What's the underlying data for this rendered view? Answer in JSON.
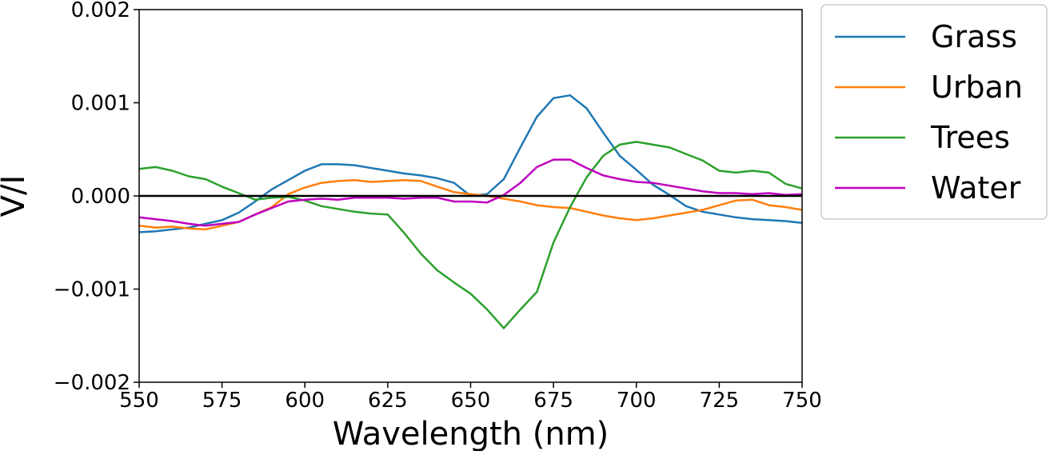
{
  "chart_data": {
    "type": "line",
    "title": "",
    "xlabel": "Wavelength (nm)",
    "ylabel": "V/I",
    "xlim": [
      550,
      750
    ],
    "ylim": [
      -0.002,
      0.002
    ],
    "xticks": [
      550,
      575,
      600,
      625,
      650,
      675,
      700,
      725,
      750
    ],
    "xtick_labels": [
      "550",
      "575",
      "600",
      "625",
      "650",
      "675",
      "700",
      "725",
      "750"
    ],
    "yticks": [
      -0.002,
      -0.001,
      0.0,
      0.001,
      0.002
    ],
    "ytick_labels": [
      "−0.002",
      "−0.001",
      "0.000",
      "0.001",
      "0.002"
    ],
    "zero_line": true,
    "grid": false,
    "legend_position": "outside-right",
    "x": [
      550,
      555,
      560,
      565,
      570,
      575,
      580,
      585,
      590,
      595,
      600,
      605,
      610,
      615,
      620,
      625,
      630,
      635,
      640,
      645,
      650,
      655,
      660,
      665,
      670,
      675,
      680,
      685,
      690,
      695,
      700,
      705,
      710,
      715,
      720,
      725,
      730,
      735,
      740,
      745,
      750
    ],
    "series": [
      {
        "name": "Grass",
        "color": "#1f77b4",
        "values": [
          -0.00039,
          -0.00038,
          -0.00036,
          -0.00034,
          -0.0003,
          -0.00026,
          -0.00018,
          -6e-05,
          7e-05,
          0.00017,
          0.00027,
          0.00034,
          0.00034,
          0.00033,
          0.0003,
          0.00027,
          0.00024,
          0.00022,
          0.00019,
          0.00014,
          0.0,
          2e-05,
          0.00018,
          0.00052,
          0.00085,
          0.00105,
          0.00108,
          0.00094,
          0.00068,
          0.00043,
          0.00028,
          0.00012,
          1e-05,
          -0.00011,
          -0.00017,
          -0.0002,
          -0.00023,
          -0.00025,
          -0.00026,
          -0.00027,
          -0.00029
        ]
      },
      {
        "name": "Urban",
        "color": "#ff7f0e",
        "values": [
          -0.00032,
          -0.00034,
          -0.00033,
          -0.00035,
          -0.00036,
          -0.00032,
          -0.00028,
          -0.0002,
          -0.00012,
          2e-05,
          9e-05,
          0.00014,
          0.00016,
          0.00017,
          0.00015,
          0.00016,
          0.00017,
          0.00016,
          0.0001,
          4e-05,
          2e-05,
          0.0,
          -3e-05,
          -6e-05,
          -0.0001,
          -0.00012,
          -0.00013,
          -0.00017,
          -0.00021,
          -0.00024,
          -0.00026,
          -0.00024,
          -0.00021,
          -0.00018,
          -0.00015,
          -0.0001,
          -5e-05,
          -4e-05,
          -0.0001,
          -0.00012,
          -0.00015
        ]
      },
      {
        "name": "Trees",
        "color": "#2ca02c",
        "values": [
          0.00029,
          0.00031,
          0.00027,
          0.00021,
          0.00018,
          0.0001,
          3e-05,
          -4e-05,
          -2e-05,
          -1e-05,
          -5e-05,
          -0.00011,
          -0.00014,
          -0.00017,
          -0.00019,
          -0.0002,
          -0.0004,
          -0.00062,
          -0.0008,
          -0.00093,
          -0.00105,
          -0.00122,
          -0.00142,
          -0.00122,
          -0.00103,
          -0.0005,
          -0.00012,
          0.0002,
          0.00043,
          0.00055,
          0.00058,
          0.00055,
          0.00052,
          0.00045,
          0.00038,
          0.00027,
          0.00025,
          0.00027,
          0.00025,
          0.00013,
          8e-05
        ]
      },
      {
        "name": "Water",
        "color": "#bf00bf",
        "values": [
          -0.00023,
          -0.00025,
          -0.00027,
          -0.0003,
          -0.00032,
          -0.0003,
          -0.00028,
          -0.0002,
          -0.00013,
          -6e-05,
          -4e-05,
          -3e-05,
          -4e-05,
          -2e-05,
          -2e-05,
          -2e-05,
          -3e-05,
          -2e-05,
          -2e-05,
          -6e-05,
          -6e-05,
          -7e-05,
          1e-05,
          0.00014,
          0.00031,
          0.00039,
          0.00039,
          0.0003,
          0.00022,
          0.00018,
          0.00015,
          0.00014,
          0.00011,
          8e-05,
          5e-05,
          3e-05,
          3e-05,
          2e-05,
          3e-05,
          1e-05,
          2e-05
        ]
      }
    ]
  }
}
